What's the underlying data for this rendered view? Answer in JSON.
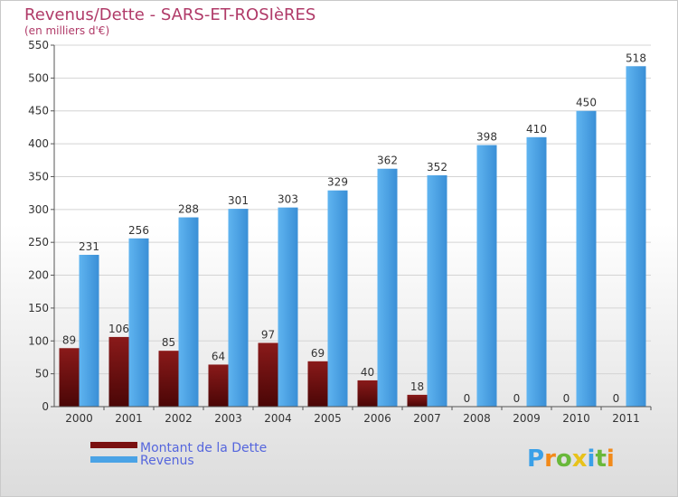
{
  "chart_data": {
    "type": "bar",
    "title": "Revenus/Dette - SARS-ET-ROSIèRES",
    "subtitle": "(en milliers d'€)",
    "categories": [
      "2000",
      "2001",
      "2002",
      "2003",
      "2004",
      "2005",
      "2006",
      "2007",
      "2008",
      "2009",
      "2010",
      "2011"
    ],
    "series": [
      {
        "name": "Montant de la Dette",
        "color": "#7a1010",
        "values": [
          89,
          106,
          85,
          64,
          97,
          69,
          40,
          18,
          0,
          0,
          0,
          0
        ]
      },
      {
        "name": "Revenus",
        "color": "#4aa3e6",
        "values": [
          231,
          256,
          288,
          301,
          303,
          329,
          362,
          352,
          398,
          410,
          450,
          518
        ]
      }
    ],
    "ylim": [
      0,
      550
    ],
    "yticks": [
      0,
      50,
      100,
      150,
      200,
      250,
      300,
      350,
      400,
      450,
      500,
      550
    ],
    "grid": true,
    "legend_position": "bottom-left"
  },
  "logo": {
    "letters": [
      "P",
      "r",
      "o",
      "x",
      "i",
      "t",
      "i"
    ],
    "colors": [
      "#3aa0e8",
      "#f28a1a",
      "#69b83a",
      "#e8c21a",
      "#3aa0e8",
      "#69b83a",
      "#f28a1a"
    ]
  }
}
